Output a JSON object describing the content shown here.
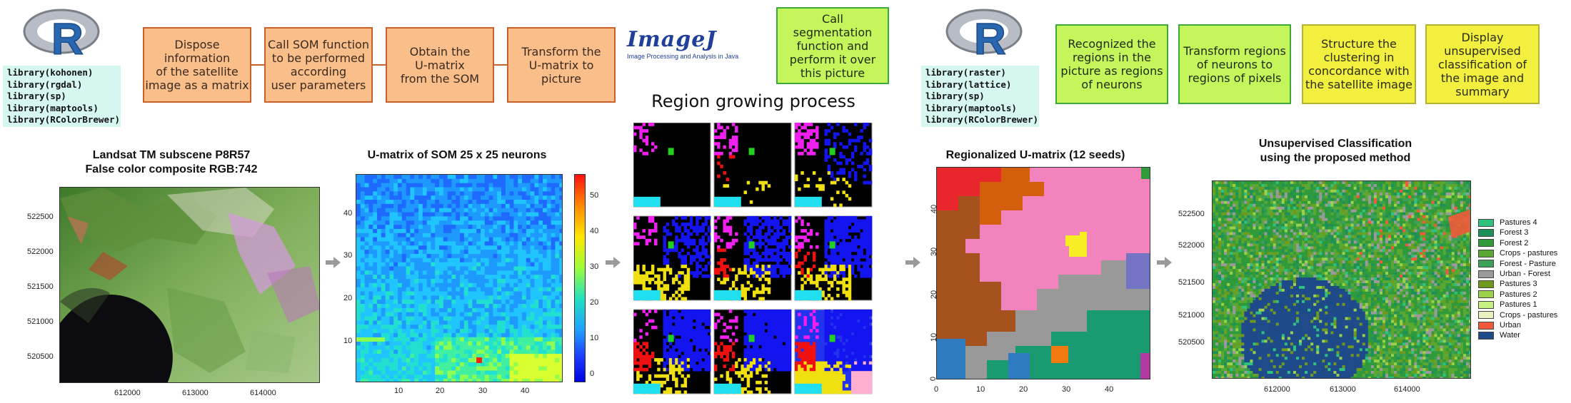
{
  "logo_text": "R",
  "imagej": {
    "name": "ImageJ",
    "tagline": "Image Processing and Analysis in Java"
  },
  "libs_left": [
    "library(kohonen)",
    "library(rgdal)",
    "library(sp)",
    "library(maptools)",
    "library(RColorBrewer)"
  ],
  "libs_right": [
    "library(raster)",
    "library(lattice)",
    "library(sp)",
    "library(maptools)",
    "library(RColorBrewer)"
  ],
  "steps": [
    {
      "text": "Dispose\ninformation\nof the satellite\nimage as a matrix",
      "color": "#f9be8a"
    },
    {
      "text": "Call SOM function\nto be performed\naccording\nuser parameters",
      "color": "#f9be8a"
    },
    {
      "text": "Obtain the\nU-matrix\nfrom the SOM",
      "color": "#f9be8a"
    },
    {
      "text": "Transform the\nU-matrix to\npicture",
      "color": "#f9be8a"
    },
    {
      "text": "Call\nsegmentation\nfunction and\nperform it over\nthis picture",
      "color": "#c4f55b"
    },
    {
      "text": "Recognized the\nregions in the\npicture as regions\nof neurons",
      "color": "#c4f55b"
    },
    {
      "text": "Transform regions\nof neurons to\nregions of pixels",
      "color": "#c4f55b"
    },
    {
      "text": "Structure the\nclustering in\nconcordance with\nthe satellite image",
      "color": "#f3ef3f"
    },
    {
      "text": "Display\nunsupervised\nclassification of\nthe image and\nsummary",
      "color": "#f3ef3f"
    }
  ],
  "panels": {
    "landsat": {
      "title": "Landsat TM subscene P8R57\nFalse color composite RGB:742",
      "yticks": [
        "522500",
        "522000",
        "521500",
        "521000",
        "520500"
      ],
      "xticks": [
        "612000",
        "613000",
        "614000"
      ]
    },
    "umatrix": {
      "title": "U-matrix of SOM 25 x 25 neurons",
      "yticks": [
        "40",
        "30",
        "20",
        "10"
      ],
      "xticks": [
        "10",
        "20",
        "30",
        "40"
      ],
      "colorbar": [
        "50",
        "40",
        "30",
        "20",
        "10",
        "0"
      ]
    },
    "growing": {
      "title": "Region growing process"
    },
    "regional": {
      "title": "Regionalized U-matrix (12 seeds)",
      "yticks": [
        "40",
        "30",
        "20",
        "10",
        "0"
      ],
      "xticks": [
        "0",
        "10",
        "20",
        "30",
        "40"
      ]
    },
    "classification": {
      "title": "Unsupervised Classification\nusing the proposed method",
      "yticks": [
        "522500",
        "522000",
        "521500",
        "521000",
        "520500"
      ],
      "xticks": [
        "612000",
        "613000",
        "614000"
      ]
    }
  },
  "legend": [
    {
      "label": "Pastures 4",
      "color": "#2ec27e"
    },
    {
      "label": "Forest 3",
      "color": "#1f8f5a"
    },
    {
      "label": "Forest 2",
      "color": "#2f9a3a"
    },
    {
      "label": "Crops - pastures",
      "color": "#5aa832"
    },
    {
      "label": "Forest - Pasture",
      "color": "#3ca05a"
    },
    {
      "label": "Urban - Forest",
      "color": "#9a9a9a"
    },
    {
      "label": "Pastures 3",
      "color": "#6f9a1e"
    },
    {
      "label": "Pastures 2",
      "color": "#9ad04a"
    },
    {
      "label": "Pastures 1",
      "color": "#c8f080"
    },
    {
      "label": "Crops - pastures",
      "color": "#e8f0c0"
    },
    {
      "label": "Urban",
      "color": "#f05a3a"
    },
    {
      "label": "Water",
      "color": "#1e4a8a"
    }
  ]
}
